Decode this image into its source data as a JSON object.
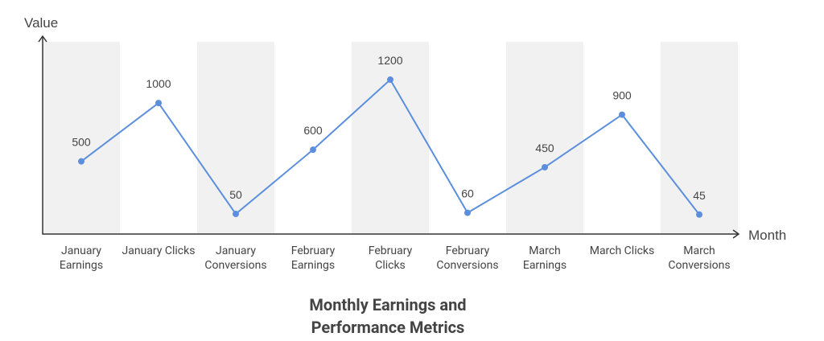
{
  "chart_data": {
    "type": "line",
    "title": "Monthly Earnings and Performance Metrics",
    "x_label": "Month",
    "y_label": "Value",
    "categories": [
      "January Earnings",
      "January Clicks",
      "January Conversions",
      "February Earnings",
      "February Clicks",
      "February Conversions",
      "March Earnings",
      "March Clicks",
      "March Conversions"
    ],
    "values": [
      500,
      1000,
      50,
      600,
      1200,
      60,
      450,
      900,
      45
    ],
    "color": "#5b8fde",
    "ylim": [
      -122,
      1524
    ]
  }
}
